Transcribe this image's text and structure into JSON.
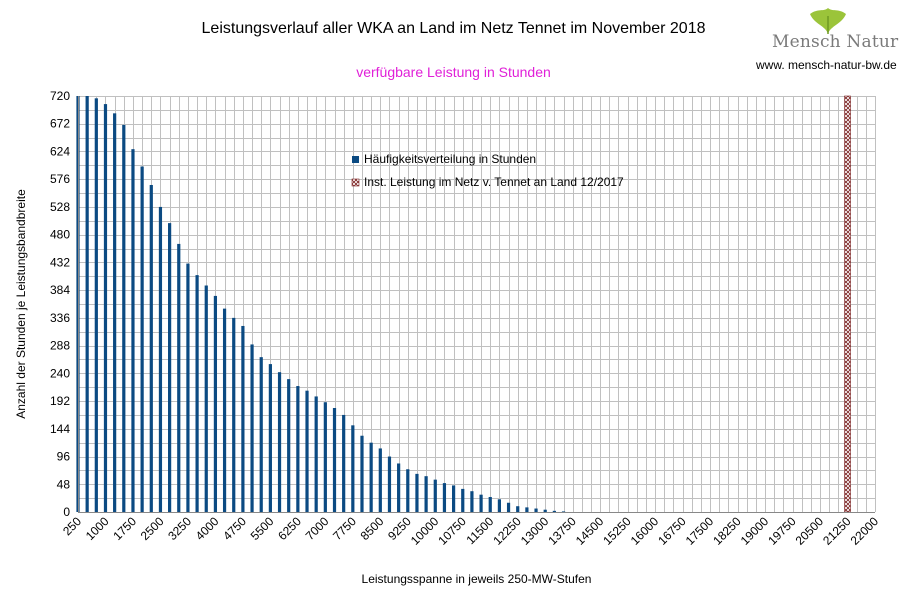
{
  "title": "Leistungsverlauf aller WKA an Land im Netz Tennet im November 2018",
  "subtitle": "verfügbare Leistung in Stunden",
  "logo": {
    "name": "Mensch Natur",
    "url": "www. mensch-natur-bw.de"
  },
  "colors": {
    "bar": "#0b4a82",
    "grid": "#c0c0c0",
    "subtitle": "#e020d8",
    "hatch": "#7a1f1f"
  },
  "chart_data": {
    "type": "bar",
    "title": "Leistungsverlauf aller WKA an Land im Netz Tennet im November 2018",
    "subtitle": "verfügbare Leistung in Stunden",
    "xlabel": "Leistungsspanne in jeweils 250-MW-Stufen",
    "ylabel": "Anzahl der Stunden je Leistungsbandbreite",
    "ylim": [
      0,
      720
    ],
    "yticks": [
      0,
      48,
      96,
      144,
      192,
      240,
      288,
      336,
      384,
      432,
      480,
      528,
      576,
      624,
      672,
      720
    ],
    "xtick_labels": [
      "250",
      "1000",
      "1750",
      "2500",
      "3250",
      "4000",
      "4750",
      "5500",
      "6250",
      "7000",
      "7750",
      "8500",
      "9250",
      "10000",
      "10750",
      "11500",
      "12250",
      "13000",
      "13750",
      "14500",
      "15250",
      "16000",
      "16750",
      "17500",
      "18250",
      "19000",
      "19750",
      "20500",
      "21250",
      "22000"
    ],
    "grid": true,
    "legend_position": "top-center",
    "series": [
      {
        "name": "Häufigkeitsverteilung in Stunden",
        "x": [
          250,
          500,
          750,
          1000,
          1250,
          1500,
          1750,
          2000,
          2250,
          2500,
          2750,
          3000,
          3250,
          3500,
          3750,
          4000,
          4250,
          4500,
          4750,
          5000,
          5250,
          5500,
          5750,
          6000,
          6250,
          6500,
          6750,
          7000,
          7250,
          7500,
          7750,
          8000,
          8250,
          8500,
          8750,
          9000,
          9250,
          9500,
          9750,
          10000,
          10250,
          10500,
          10750,
          11000,
          11250,
          11500,
          11750,
          12000,
          12250,
          12500,
          12750,
          13000,
          13250,
          13500
        ],
        "values": [
          720,
          720,
          716,
          706,
          690,
          670,
          628,
          598,
          566,
          528,
          500,
          464,
          430,
          410,
          392,
          374,
          352,
          336,
          322,
          290,
          268,
          256,
          242,
          230,
          218,
          210,
          200,
          190,
          180,
          168,
          150,
          132,
          120,
          110,
          96,
          84,
          74,
          66,
          62,
          56,
          50,
          46,
          40,
          36,
          30,
          26,
          22,
          16,
          10,
          8,
          6,
          4,
          2,
          1
        ]
      },
      {
        "name": "Inst. Leistung im Netz v. Tennet an Land 12/2017",
        "x": [
          21250
        ],
        "values": [
          720
        ]
      }
    ]
  }
}
